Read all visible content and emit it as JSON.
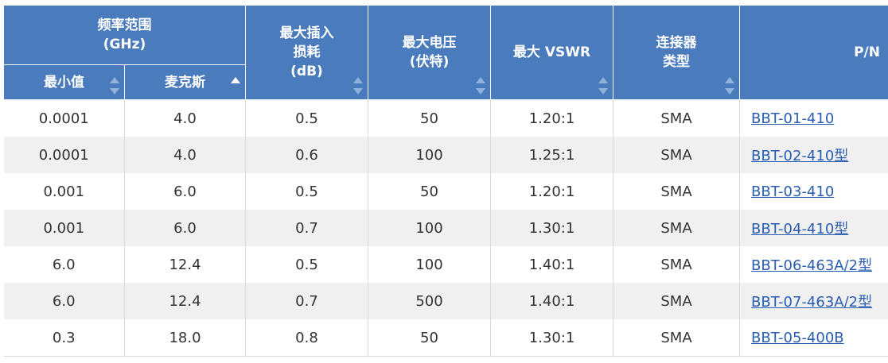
{
  "header": {
    "freq_group": "频率范围\n(GHz)",
    "min_label": "最小值",
    "max_label": "麦克斯",
    "insertion_loss": "最大插入\n损耗\n(dB)",
    "max_voltage": "最大电压\n(伏特)",
    "max_vswr": "最大 VSWR",
    "connector_type": "连接器\n类型",
    "pn": "P/N"
  },
  "rows": [
    {
      "min": "0.0001",
      "max": "4.0",
      "loss": "0.5",
      "voltage": "50",
      "vswr": "1.20:1",
      "connector": "SMA",
      "pn": "BBT-01-410"
    },
    {
      "min": "0.0001",
      "max": "4.0",
      "loss": "0.6",
      "voltage": "100",
      "vswr": "1.25:1",
      "connector": "SMA",
      "pn": "BBT-02-410型"
    },
    {
      "min": "0.001",
      "max": "6.0",
      "loss": "0.5",
      "voltage": "50",
      "vswr": "1.20:1",
      "connector": "SMA",
      "pn": "BBT-03-410"
    },
    {
      "min": "0.001",
      "max": "6.0",
      "loss": "0.7",
      "voltage": "100",
      "vswr": "1.30:1",
      "connector": "SMA",
      "pn": "BBT-04-410型"
    },
    {
      "min": "6.0",
      "max": "12.4",
      "loss": "0.5",
      "voltage": "100",
      "vswr": "1.40:1",
      "connector": "SMA",
      "pn": "BBT-06-463A/2型"
    },
    {
      "min": "6.0",
      "max": "12.4",
      "loss": "0.7",
      "voltage": "500",
      "vswr": "1.40:1",
      "connector": "SMA",
      "pn": "BBT-07-463A/2型"
    },
    {
      "min": "0.3",
      "max": "18.0",
      "loss": "0.8",
      "voltage": "50",
      "vswr": "1.30:1",
      "connector": "SMA",
      "pn": "BBT-05-400B"
    }
  ],
  "colors": {
    "header_bg": "#4a7bbd",
    "row_alt": "#f0f0f0",
    "link": "#2a5db0"
  }
}
